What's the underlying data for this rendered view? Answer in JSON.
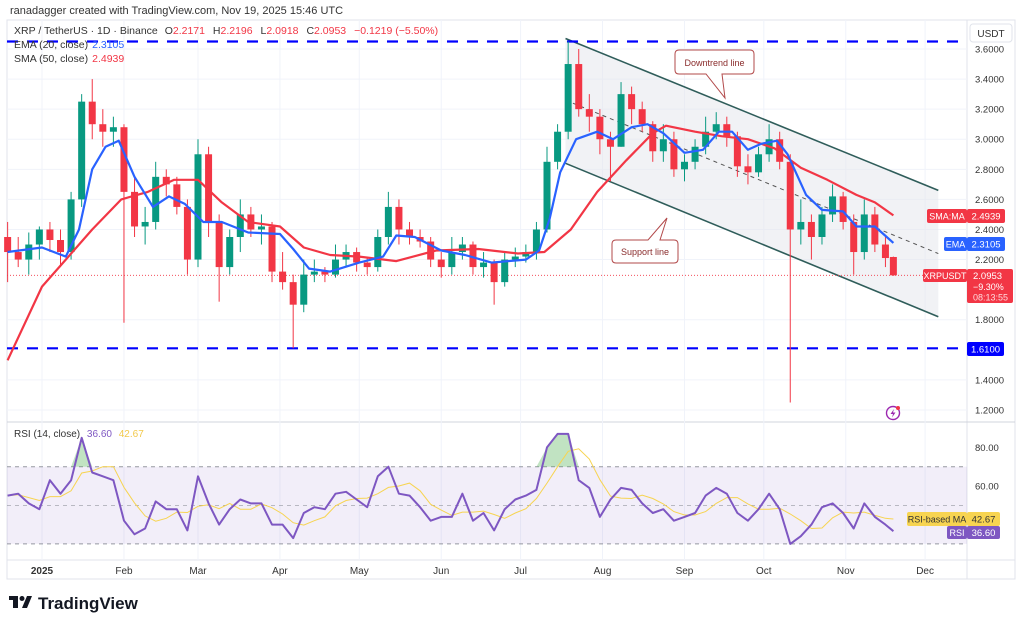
{
  "header": {
    "credit": "ranadagger created with TradingView.com, Nov 19, 2025 15:46 UTC",
    "symbol": "XRP / TetherUS · 1D · Binance",
    "o_label": "O",
    "o": "2.2171",
    "h_label": "H",
    "h": "2.2196",
    "l_label": "L",
    "l": "2.0918",
    "c_label": "C",
    "c": "2.0953",
    "change": "−0.1219 (−5.50%)",
    "ema_label": "EMA (20, close)",
    "ema_value": "2.3105",
    "sma_label": "SMA (50, close)",
    "sma_value": "2.4939"
  },
  "rsi_legend": {
    "label": "RSI (14, close)",
    "rsi": "36.60",
    "ma": "42.67"
  },
  "axis": {
    "currency": "USDT",
    "sma_tag": "SMA:MA",
    "sma_value": "2.4939",
    "ema_tag": "EMA",
    "ema_value": "2.3105",
    "symbol_tag": "XRPUSDT",
    "price": "2.0953",
    "pct": "−9.30%",
    "countdown": "08:13:55",
    "level_tag": "1.6100",
    "rsi_ma_tag": "RSI-based MA",
    "rsi_ma_value": "42.67",
    "rsi_tag": "RSI",
    "rsi_value": "36.60"
  },
  "annotations": {
    "downtrend": "Downtrend line",
    "support": "Support line"
  },
  "logo": "TradingView",
  "colors": {
    "up": "#089981",
    "down": "#f23645",
    "ema": "#2962ff",
    "sma": "#f23645",
    "rsi": "#7e57c2",
    "rsi_ma": "#f7d451",
    "level": "#0000ff",
    "channel": "#2f5d5a"
  },
  "chart_data": {
    "type": "candlestick",
    "title": "XRP / TetherUS · 1D · Binance",
    "price_ticks": [
      "3.6000",
      "3.4000",
      "3.2000",
      "3.0000",
      "2.8000",
      "2.6000",
      "2.4000",
      "2.2000",
      "1.8000",
      "1.4000",
      "1.2000"
    ],
    "price_range": [
      1.15,
      3.75
    ],
    "time_ticks": [
      [
        "2025-01-01",
        "2025"
      ],
      [
        "2025-02-01",
        "Feb"
      ],
      [
        "2025-03-01",
        "Mar"
      ],
      [
        "2025-04-01",
        "Apr"
      ],
      [
        "2025-05-01",
        "May"
      ],
      [
        "2025-06-01",
        "Jun"
      ],
      [
        "2025-07-01",
        "Jul"
      ],
      [
        "2025-08-01",
        "Aug"
      ],
      [
        "2025-09-01",
        "Sep"
      ],
      [
        "2025-10-01",
        "Oct"
      ],
      [
        "2025-11-01",
        "Nov"
      ],
      [
        "2025-12-01",
        "Dec"
      ]
    ],
    "candles_ohlc": [
      [
        "2024-12-19",
        2.35,
        2.45,
        2.05,
        2.25
      ],
      [
        "2024-12-23",
        2.25,
        2.35,
        2.15,
        2.2
      ],
      [
        "2024-12-27",
        2.2,
        2.38,
        2.1,
        2.3
      ],
      [
        "2024-12-31",
        2.3,
        2.42,
        2.2,
        2.4
      ],
      [
        "2025-01-04",
        2.4,
        2.45,
        2.25,
        2.33
      ],
      [
        "2025-01-08",
        2.33,
        2.4,
        2.15,
        2.25
      ],
      [
        "2025-01-12",
        2.25,
        2.65,
        2.2,
        2.6
      ],
      [
        "2025-01-16",
        2.6,
        3.3,
        2.55,
        3.25
      ],
      [
        "2025-01-20",
        3.25,
        3.4,
        3.0,
        3.1
      ],
      [
        "2025-01-24",
        3.1,
        3.2,
        2.95,
        3.05
      ],
      [
        "2025-01-28",
        3.05,
        3.15,
        2.95,
        3.08
      ],
      [
        "2025-02-01",
        3.08,
        3.1,
        1.78,
        2.65
      ],
      [
        "2025-02-05",
        2.65,
        2.75,
        2.35,
        2.42
      ],
      [
        "2025-02-09",
        2.42,
        2.55,
        2.3,
        2.45
      ],
      [
        "2025-02-13",
        2.45,
        2.85,
        2.4,
        2.75
      ],
      [
        "2025-02-17",
        2.75,
        2.8,
        2.62,
        2.7
      ],
      [
        "2025-02-21",
        2.7,
        2.75,
        2.5,
        2.55
      ],
      [
        "2025-02-25",
        2.55,
        2.6,
        2.1,
        2.2
      ],
      [
        "2025-03-01",
        2.2,
        3.0,
        2.15,
        2.9
      ],
      [
        "2025-03-05",
        2.9,
        2.95,
        2.35,
        2.45
      ],
      [
        "2025-03-09",
        2.45,
        2.5,
        1.92,
        2.15
      ],
      [
        "2025-03-13",
        2.15,
        2.4,
        2.1,
        2.35
      ],
      [
        "2025-03-17",
        2.35,
        2.6,
        2.25,
        2.5
      ],
      [
        "2025-03-21",
        2.5,
        2.55,
        2.35,
        2.4
      ],
      [
        "2025-03-25",
        2.4,
        2.5,
        2.3,
        2.42
      ],
      [
        "2025-03-29",
        2.42,
        2.45,
        2.05,
        2.12
      ],
      [
        "2025-04-02",
        2.12,
        2.25,
        2.0,
        2.05
      ],
      [
        "2025-04-06",
        2.05,
        2.1,
        1.61,
        1.9
      ],
      [
        "2025-04-10",
        1.9,
        2.2,
        1.85,
        2.1
      ],
      [
        "2025-04-14",
        2.1,
        2.2,
        2.05,
        2.12
      ],
      [
        "2025-04-18",
        2.12,
        2.15,
        2.05,
        2.1
      ],
      [
        "2025-04-22",
        2.1,
        2.3,
        2.08,
        2.2
      ],
      [
        "2025-04-26",
        2.2,
        2.3,
        2.15,
        2.25
      ],
      [
        "2025-04-30",
        2.25,
        2.28,
        2.12,
        2.18
      ],
      [
        "2025-05-04",
        2.18,
        2.22,
        2.1,
        2.15
      ],
      [
        "2025-05-08",
        2.15,
        2.4,
        2.12,
        2.35
      ],
      [
        "2025-05-12",
        2.35,
        2.65,
        2.3,
        2.55
      ],
      [
        "2025-05-16",
        2.55,
        2.6,
        2.3,
        2.4
      ],
      [
        "2025-05-20",
        2.4,
        2.45,
        2.3,
        2.35
      ],
      [
        "2025-05-24",
        2.35,
        2.4,
        2.28,
        2.32
      ],
      [
        "2025-05-28",
        2.32,
        2.35,
        2.15,
        2.2
      ],
      [
        "2025-06-01",
        2.2,
        2.25,
        2.08,
        2.15
      ],
      [
        "2025-06-05",
        2.15,
        2.35,
        2.1,
        2.25
      ],
      [
        "2025-06-09",
        2.25,
        2.35,
        2.2,
        2.3
      ],
      [
        "2025-06-13",
        2.3,
        2.32,
        2.1,
        2.15
      ],
      [
        "2025-06-17",
        2.15,
        2.25,
        2.08,
        2.18
      ],
      [
        "2025-06-21",
        2.18,
        2.2,
        1.9,
        2.05
      ],
      [
        "2025-06-25",
        2.05,
        2.25,
        2.02,
        2.2
      ],
      [
        "2025-06-29",
        2.2,
        2.28,
        2.15,
        2.22
      ],
      [
        "2025-07-03",
        2.22,
        2.3,
        2.18,
        2.25
      ],
      [
        "2025-07-07",
        2.25,
        2.45,
        2.2,
        2.4
      ],
      [
        "2025-07-11",
        2.4,
        2.95,
        2.38,
        2.85
      ],
      [
        "2025-07-15",
        2.85,
        3.1,
        2.8,
        3.05
      ],
      [
        "2025-07-19",
        3.05,
        3.65,
        3.0,
        3.5
      ],
      [
        "2025-07-23",
        3.5,
        3.6,
        3.15,
        3.2
      ],
      [
        "2025-07-27",
        3.2,
        3.3,
        3.05,
        3.15
      ],
      [
        "2025-07-31",
        3.15,
        3.2,
        2.9,
        3.0
      ],
      [
        "2025-08-04",
        3.0,
        3.05,
        2.72,
        2.95
      ],
      [
        "2025-08-08",
        2.95,
        3.38,
        2.95,
        3.3
      ],
      [
        "2025-08-12",
        3.3,
        3.35,
        3.1,
        3.2
      ],
      [
        "2025-08-16",
        3.2,
        3.25,
        3.05,
        3.1
      ],
      [
        "2025-08-20",
        3.1,
        3.12,
        2.85,
        2.92
      ],
      [
        "2025-08-24",
        2.92,
        3.1,
        2.85,
        3.0
      ],
      [
        "2025-08-28",
        3.0,
        3.05,
        2.75,
        2.8
      ],
      [
        "2025-09-01",
        2.8,
        2.9,
        2.72,
        2.85
      ],
      [
        "2025-09-05",
        2.85,
        3.0,
        2.8,
        2.95
      ],
      [
        "2025-09-09",
        2.95,
        3.15,
        2.9,
        3.05
      ],
      [
        "2025-09-13",
        3.05,
        3.18,
        3.0,
        3.1
      ],
      [
        "2025-09-17",
        3.1,
        3.15,
        2.95,
        3.02
      ],
      [
        "2025-09-21",
        3.02,
        3.05,
        2.75,
        2.82
      ],
      [
        "2025-09-25",
        2.82,
        2.9,
        2.7,
        2.78
      ],
      [
        "2025-09-29",
        2.78,
        2.95,
        2.75,
        2.9
      ],
      [
        "2025-10-03",
        2.9,
        3.1,
        2.85,
        3.0
      ],
      [
        "2025-10-07",
        3.0,
        3.05,
        2.8,
        2.85
      ],
      [
        "2025-10-11",
        2.85,
        2.9,
        1.25,
        2.4
      ],
      [
        "2025-10-15",
        2.4,
        2.6,
        2.3,
        2.45
      ],
      [
        "2025-10-19",
        2.45,
        2.5,
        2.2,
        2.35
      ],
      [
        "2025-10-23",
        2.35,
        2.55,
        2.3,
        2.5
      ],
      [
        "2025-10-27",
        2.5,
        2.7,
        2.45,
        2.62
      ],
      [
        "2025-10-31",
        2.62,
        2.65,
        2.4,
        2.45
      ],
      [
        "2025-11-04",
        2.45,
        2.5,
        2.1,
        2.25
      ],
      [
        "2025-11-08",
        2.25,
        2.6,
        2.2,
        2.5
      ],
      [
        "2025-11-12",
        2.5,
        2.55,
        2.25,
        2.3
      ],
      [
        "2025-11-16",
        2.3,
        2.35,
        2.15,
        2.21
      ],
      [
        "2025-11-19",
        2.2171,
        2.2196,
        2.0918,
        2.0953
      ]
    ],
    "ema20": [
      [
        "2024-12-19",
        2.25
      ],
      [
        "2025-01-01",
        2.28
      ],
      [
        "2025-01-10",
        2.22
      ],
      [
        "2025-01-15",
        2.4
      ],
      [
        "2025-01-20",
        2.8
      ],
      [
        "2025-01-25",
        2.95
      ],
      [
        "2025-01-30",
        2.99
      ],
      [
        "2025-02-05",
        2.75
      ],
      [
        "2025-02-12",
        2.55
      ],
      [
        "2025-02-18",
        2.62
      ],
      [
        "2025-02-24",
        2.57
      ],
      [
        "2025-03-03",
        2.45
      ],
      [
        "2025-03-10",
        2.45
      ],
      [
        "2025-03-20",
        2.38
      ],
      [
        "2025-04-01",
        2.37
      ],
      [
        "2025-04-06",
        2.27
      ],
      [
        "2025-04-12",
        2.14
      ],
      [
        "2025-04-20",
        2.12
      ],
      [
        "2025-05-01",
        2.18
      ],
      [
        "2025-05-10",
        2.22
      ],
      [
        "2025-05-15",
        2.36
      ],
      [
        "2025-05-22",
        2.35
      ],
      [
        "2025-06-01",
        2.26
      ],
      [
        "2025-06-10",
        2.23
      ],
      [
        "2025-06-20",
        2.18
      ],
      [
        "2025-07-03",
        2.2
      ],
      [
        "2025-07-08",
        2.26
      ],
      [
        "2025-07-12",
        2.47
      ],
      [
        "2025-07-16",
        2.78
      ],
      [
        "2025-07-22",
        3.0
      ],
      [
        "2025-07-30",
        3.05
      ],
      [
        "2025-08-05",
        3.0
      ],
      [
        "2025-08-12",
        3.08
      ],
      [
        "2025-08-18",
        3.1
      ],
      [
        "2025-08-24",
        3.04
      ],
      [
        "2025-09-01",
        2.91
      ],
      [
        "2025-09-08",
        2.93
      ],
      [
        "2025-09-14",
        3.05
      ],
      [
        "2025-09-19",
        3.05
      ],
      [
        "2025-09-25",
        2.93
      ],
      [
        "2025-09-30",
        2.97
      ],
      [
        "2025-10-06",
        2.99
      ],
      [
        "2025-10-10",
        2.9
      ],
      [
        "2025-10-17",
        2.63
      ],
      [
        "2025-10-23",
        2.53
      ],
      [
        "2025-10-31",
        2.52
      ],
      [
        "2025-11-05",
        2.42
      ],
      [
        "2025-11-12",
        2.42
      ],
      [
        "2025-11-19",
        2.3105
      ]
    ],
    "sma50": [
      [
        "2024-12-19",
        1.53
      ],
      [
        "2025-01-01",
        2.02
      ],
      [
        "2025-01-10",
        2.2
      ],
      [
        "2025-01-20",
        2.4
      ],
      [
        "2025-01-31",
        2.6
      ],
      [
        "2025-02-10",
        2.65
      ],
      [
        "2025-02-20",
        2.73
      ],
      [
        "2025-03-01",
        2.73
      ],
      [
        "2025-03-10",
        2.58
      ],
      [
        "2025-03-20",
        2.45
      ],
      [
        "2025-04-01",
        2.42
      ],
      [
        "2025-04-10",
        2.28
      ],
      [
        "2025-04-20",
        2.23
      ],
      [
        "2025-05-01",
        2.22
      ],
      [
        "2025-05-15",
        2.19
      ],
      [
        "2025-05-30",
        2.26
      ],
      [
        "2025-06-15",
        2.27
      ],
      [
        "2025-06-30",
        2.24
      ],
      [
        "2025-07-10",
        2.25
      ],
      [
        "2025-07-20",
        2.4
      ],
      [
        "2025-07-30",
        2.65
      ],
      [
        "2025-08-10",
        2.86
      ],
      [
        "2025-08-20",
        3.04
      ],
      [
        "2025-08-25",
        3.09
      ],
      [
        "2025-09-05",
        3.05
      ],
      [
        "2025-09-15",
        3.02
      ],
      [
        "2025-09-25",
        3.0
      ],
      [
        "2025-10-05",
        2.94
      ],
      [
        "2025-10-15",
        2.81
      ],
      [
        "2025-10-25",
        2.73
      ],
      [
        "2025-11-05",
        2.63
      ],
      [
        "2025-11-12",
        2.58
      ],
      [
        "2025-11-19",
        2.4939
      ]
    ],
    "horizontal_levels": [
      3.65,
      1.61
    ],
    "channel": {
      "start": "2025-07-18",
      "end": "2025-12-06",
      "upper": [
        3.67,
        2.66
      ],
      "mid": [
        3.26,
        2.24
      ],
      "lower": [
        2.84,
        1.82
      ]
    },
    "rsi": {
      "ticks": [
        "80.00",
        "60.00"
      ],
      "bands": [
        30,
        70
      ],
      "values": [
        55,
        56,
        51,
        48,
        63,
        56,
        63,
        85,
        67,
        65,
        63,
        42,
        35,
        38,
        52,
        48,
        48,
        37,
        65,
        51,
        40,
        48,
        53,
        51,
        51,
        40,
        40,
        33,
        46,
        49,
        48,
        56,
        57,
        53,
        49,
        65,
        70,
        56,
        55,
        49,
        42,
        44,
        44,
        56,
        42,
        46,
        37,
        48,
        53,
        55,
        58,
        80,
        87,
        87,
        63,
        59,
        44,
        53,
        59,
        58,
        51,
        46,
        48,
        42,
        44,
        46,
        55,
        59,
        56,
        46,
        42,
        48,
        56,
        48,
        30,
        34,
        40,
        49,
        51,
        46,
        38,
        51,
        44,
        40,
        36.6
      ]
    }
  }
}
